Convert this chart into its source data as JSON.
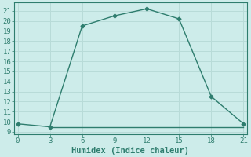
{
  "xlabel": "Humidex (Indice chaleur)",
  "ylabel": "",
  "line1_x": [
    0,
    3,
    6,
    9,
    12,
    15,
    18,
    21
  ],
  "line1_y": [
    9.8,
    9.5,
    19.5,
    20.5,
    21.2,
    20.2,
    12.5,
    9.8
  ],
  "line2_x": [
    3,
    12,
    21
  ],
  "line2_y": [
    9.5,
    9.5,
    9.5
  ],
  "line_color": "#2e7d6e",
  "bg_color": "#cdecea",
  "grid_color": "#b8dbd8",
  "xlim": [
    -0.3,
    21.3
  ],
  "ylim": [
    8.8,
    21.8
  ],
  "xticks": [
    0,
    3,
    6,
    9,
    12,
    15,
    18,
    21
  ],
  "yticks": [
    9,
    10,
    11,
    12,
    13,
    14,
    15,
    16,
    17,
    18,
    19,
    20,
    21
  ],
  "marker": "D",
  "markersize": 2.5,
  "linewidth": 1.0,
  "fontsize_label": 7.5,
  "fontsize_tick": 6.5
}
